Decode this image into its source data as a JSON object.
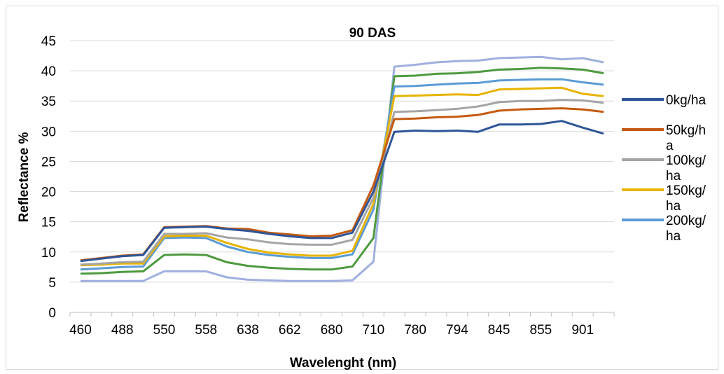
{
  "chart_data": {
    "type": "line",
    "title": "90 DAS",
    "xlabel": "Wavelenght (nm)",
    "ylabel": "Reflectance %",
    "ylim": [
      0,
      45
    ],
    "y_ticks": [
      "0",
      "5",
      "10",
      "15",
      "20",
      "25",
      "30",
      "35",
      "40",
      "45"
    ],
    "x_tick_labels": [
      "460",
      "488",
      "550",
      "558",
      "638",
      "662",
      "680",
      "710",
      "780",
      "794",
      "845",
      "855",
      "901"
    ],
    "grid": "horizontal",
    "legend_position": "right",
    "series": [
      {
        "name": "0kg/ha",
        "legend_lines": [
          "0kg/ha"
        ],
        "color": "#2f5597",
        "values": [
          8.5,
          8.9,
          9.3,
          9.5,
          14.0,
          14.1,
          14.2,
          13.8,
          13.5,
          13.0,
          12.6,
          12.3,
          12.3,
          13.2,
          20.0,
          29.9,
          30.1,
          30.0,
          30.1,
          29.9,
          31.1,
          31.1,
          31.2,
          31.7,
          30.6,
          29.6
        ]
      },
      {
        "name": "50kg/ha",
        "legend_lines": [
          "50kg/h",
          "a"
        ],
        "color": "#c55a11",
        "values": [
          8.6,
          9.0,
          9.4,
          9.6,
          14.1,
          14.2,
          14.3,
          13.9,
          13.8,
          13.2,
          12.9,
          12.6,
          12.7,
          13.6,
          21.0,
          32.0,
          32.1,
          32.3,
          32.4,
          32.7,
          33.4,
          33.6,
          33.7,
          33.8,
          33.6,
          33.2
        ]
      },
      {
        "name": "100kg/ha",
        "legend_lines": [
          "100kg/",
          "ha"
        ],
        "color": "#a5a5a5",
        "values": [
          7.9,
          8.1,
          8.3,
          8.4,
          13.0,
          13.0,
          13.1,
          12.4,
          12.1,
          11.6,
          11.3,
          11.2,
          11.2,
          12.0,
          19.0,
          33.2,
          33.3,
          33.5,
          33.7,
          34.1,
          34.8,
          35.0,
          35.0,
          35.2,
          35.1,
          34.7
        ]
      },
      {
        "name": "150kg/ha",
        "legend_lines": [
          "150kg/",
          "ha"
        ],
        "color": "#e8b400",
        "values": [
          7.8,
          7.9,
          8.1,
          8.1,
          12.6,
          12.7,
          12.7,
          11.5,
          10.5,
          9.9,
          9.6,
          9.4,
          9.4,
          10.2,
          18.0,
          35.8,
          35.9,
          36.0,
          36.1,
          36.0,
          36.9,
          37.0,
          37.1,
          37.2,
          36.2,
          35.8
        ]
      },
      {
        "name": "200kg/ha",
        "legend_lines": [
          "200kg/",
          "ha"
        ],
        "color": "#5b9bd5",
        "values": [
          7.1,
          7.3,
          7.5,
          7.6,
          12.3,
          12.4,
          12.3,
          10.9,
          10.0,
          9.5,
          9.2,
          9.0,
          9.0,
          9.6,
          17.0,
          37.4,
          37.5,
          37.7,
          37.9,
          38.0,
          38.4,
          38.5,
          38.6,
          38.6,
          38.1,
          37.7
        ]
      },
      {
        "color": "#4e9a3f",
        "values": [
          6.4,
          6.5,
          6.7,
          6.8,
          9.5,
          9.6,
          9.5,
          8.3,
          7.7,
          7.4,
          7.2,
          7.1,
          7.1,
          7.6,
          12.3,
          39.1,
          39.2,
          39.5,
          39.6,
          39.8,
          40.2,
          40.3,
          40.5,
          40.4,
          40.2,
          39.6
        ]
      },
      {
        "color": "#9fb0e0",
        "values": [
          5.2,
          5.2,
          5.2,
          5.2,
          6.8,
          6.8,
          6.8,
          5.8,
          5.4,
          5.3,
          5.2,
          5.2,
          5.2,
          5.3,
          8.4,
          40.7,
          41.0,
          41.4,
          41.6,
          41.7,
          42.1,
          42.2,
          42.3,
          41.9,
          42.1,
          41.4
        ]
      }
    ]
  }
}
